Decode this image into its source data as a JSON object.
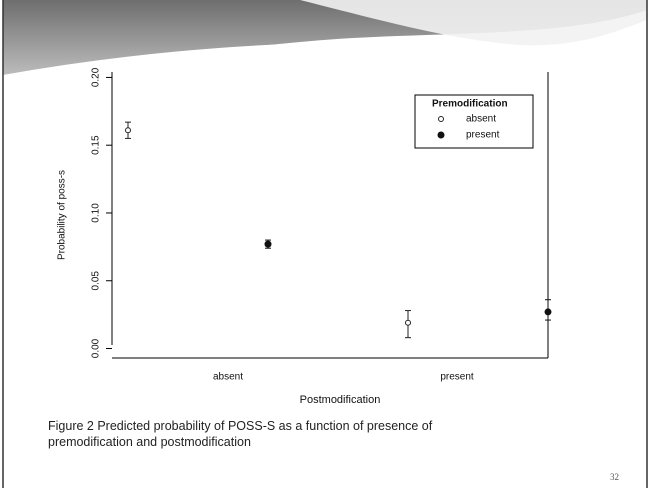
{
  "chart_data": {
    "type": "scatter",
    "x_label": "Postmodification",
    "y_label": "Probability of poss-s",
    "categories": [
      "absent",
      "present"
    ],
    "legend_title": "Premodification",
    "legend": "top-right",
    "series": [
      {
        "name": "absent",
        "marker": "open",
        "color": "#222",
        "values": [
          0.161,
          0.019
        ],
        "lower": [
          0.155,
          0.008
        ],
        "upper": [
          0.167,
          0.028
        ]
      },
      {
        "name": "present",
        "marker": "filled",
        "color": "#111",
        "values": [
          0.077,
          0.027
        ],
        "lower": [
          0.074,
          0.021
        ],
        "upper": [
          0.08,
          0.036
        ]
      }
    ],
    "ylim": [
      -0.007,
      0.204
    ],
    "yticks": [
      {
        "value": 0,
        "label": "0.00"
      },
      {
        "value": 0.05,
        "label": "0.05"
      },
      {
        "value": 0.1,
        "label": "0.10"
      },
      {
        "value": 0.15,
        "label": "0.15"
      },
      {
        "value": 0.2,
        "label": "0.20"
      }
    ]
  },
  "caption": "Figure 2 Predicted probability of POSS-S as a function of presence of premodification and postmodification",
  "page_number": "32"
}
